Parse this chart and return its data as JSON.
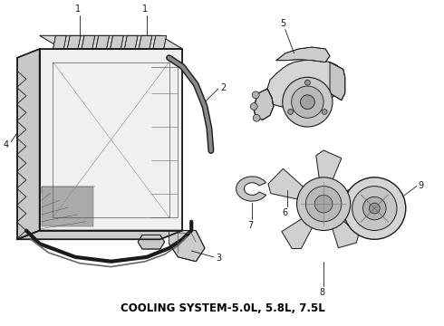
{
  "bg_color": "#ffffff",
  "line_color": "#1a1a1a",
  "label_color": "#000000",
  "fig_width": 4.9,
  "fig_height": 3.6,
  "dpi": 100,
  "caption": "COOLING SYSTEM-5.0L, 5.8L, 7.5L",
  "caption_fontsize": 8.5,
  "label_fontsize": 7,
  "lw": 0.75
}
